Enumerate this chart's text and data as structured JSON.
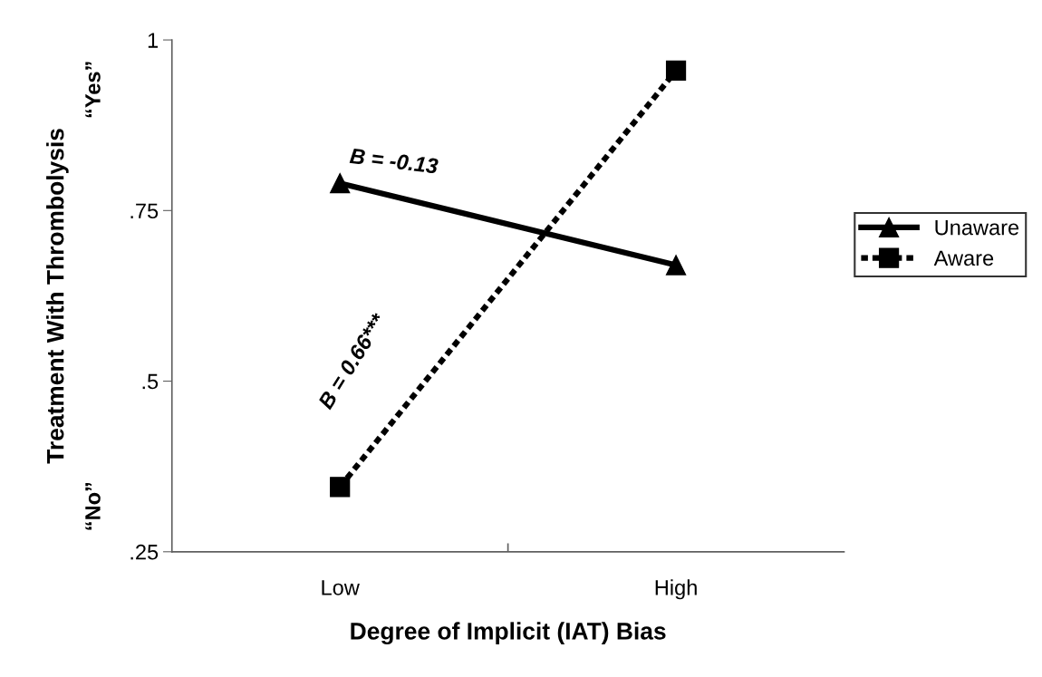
{
  "chart_data": {
    "type": "line",
    "xlabel": "Degree of Implicit (IAT) Bias",
    "ylabel": "Treatment With Thrombolysis",
    "categories": [
      "Low",
      "High"
    ],
    "series": [
      {
        "name": "Unaware",
        "color": "#000000",
        "values": [
          0.79,
          0.67
        ],
        "marker": "triangle",
        "line_style": "solid"
      },
      {
        "name": "Aware",
        "color": "#000000",
        "values": [
          0.345,
          0.955
        ],
        "marker": "square",
        "line_style": "dotted"
      }
    ],
    "ylim": [
      0.25,
      1
    ],
    "yticks": [
      {
        "value": 0.25,
        "label": ".25"
      },
      {
        "value": 0.5,
        "label": ".5"
      },
      {
        "value": 0.75,
        "label": ".75"
      },
      {
        "value": 1,
        "label": "1"
      }
    ],
    "annotations": [
      "“Yes”",
      "“No”",
      "B = -0.13",
      "B = 0.66***"
    ],
    "grid": false,
    "legend": "right"
  }
}
